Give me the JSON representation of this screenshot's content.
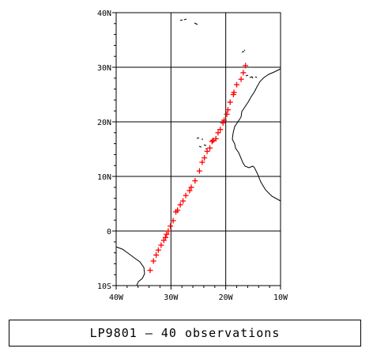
{
  "map": {
    "lat_range": [
      -10,
      40
    ],
    "lon_range": [
      -40,
      -10
    ],
    "lat_ticks": [
      {
        "value": 40,
        "label": "40N"
      },
      {
        "value": 30,
        "label": "30N"
      },
      {
        "value": 20,
        "label": "20N"
      },
      {
        "value": 10,
        "label": "10N"
      },
      {
        "value": 0,
        "label": "0"
      },
      {
        "value": -10,
        "label": "10S"
      }
    ],
    "lon_ticks": [
      {
        "value": -40,
        "label": "40W"
      },
      {
        "value": -30,
        "label": "30W"
      },
      {
        "value": -20,
        "label": "20W"
      },
      {
        "value": -10,
        "label": "10W"
      }
    ],
    "grid": true,
    "marker_symbol": "+",
    "marker_color": "#ff0000",
    "observations": [
      [
        -16.4,
        30.3
      ],
      [
        -16.8,
        29.0
      ],
      [
        -17.2,
        27.8
      ],
      [
        -18.0,
        26.8
      ],
      [
        -18.5,
        25.4
      ],
      [
        -18.6,
        25.0
      ],
      [
        -19.2,
        23.6
      ],
      [
        -19.6,
        22.2
      ],
      [
        -19.8,
        21.4
      ],
      [
        -20.3,
        20.3
      ],
      [
        -20.5,
        19.8
      ],
      [
        -21.0,
        18.6
      ],
      [
        -21.4,
        18.0
      ],
      [
        -21.8,
        16.9
      ],
      [
        -22.3,
        16.6
      ],
      [
        -22.5,
        16.4
      ],
      [
        -22.9,
        15.2
      ],
      [
        -23.4,
        14.6
      ],
      [
        -23.9,
        13.4
      ],
      [
        -24.3,
        12.6
      ],
      [
        -24.8,
        11.0
      ],
      [
        -25.6,
        9.2
      ],
      [
        -26.3,
        8.0
      ],
      [
        -26.6,
        7.4
      ],
      [
        -27.3,
        6.5
      ],
      [
        -27.8,
        5.5
      ],
      [
        -28.3,
        4.8
      ],
      [
        -28.8,
        3.8
      ],
      [
        -29.1,
        3.5
      ],
      [
        -29.6,
        1.9
      ],
      [
        -30.1,
        0.9
      ],
      [
        -30.5,
        0.0
      ],
      [
        -30.8,
        -0.6
      ],
      [
        -31.0,
        -1.2
      ],
      [
        -31.3,
        -1.7
      ],
      [
        -31.8,
        -2.6
      ],
      [
        -32.3,
        -3.5
      ],
      [
        -32.7,
        -4.4
      ],
      [
        -33.2,
        -5.5
      ],
      [
        -33.8,
        -7.2
      ]
    ]
  },
  "caption": "LP9801 – 40 observations"
}
